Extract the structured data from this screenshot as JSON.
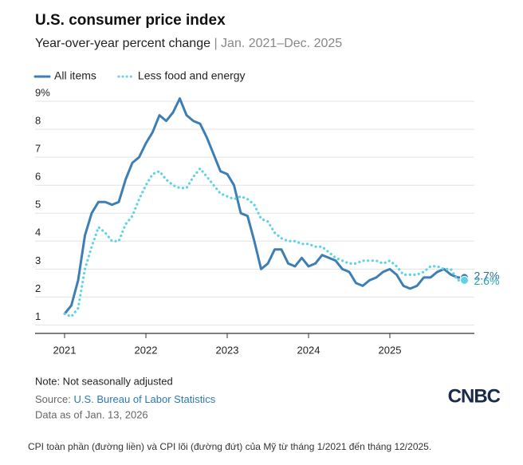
{
  "chart_data": {
    "type": "line",
    "title": "U.S. consumer price index",
    "subtitle": "Year-over-year percent change",
    "subtitle_range": "| Jan. 2021–Dec. 2025",
    "categories": [
      "2021",
      null,
      null,
      null,
      null,
      null,
      null,
      null,
      null,
      null,
      null,
      null,
      "2022",
      null,
      null,
      null,
      null,
      null,
      null,
      null,
      null,
      null,
      null,
      null,
      "2023",
      null,
      null,
      null,
      null,
      null,
      null,
      null,
      null,
      null,
      null,
      null,
      "2024",
      null,
      null,
      null,
      null,
      null,
      null,
      null,
      null,
      null,
      null,
      null,
      "2025",
      null,
      null,
      null,
      null,
      null,
      null,
      null,
      null,
      null,
      null,
      null
    ],
    "series": [
      {
        "name": "All items",
        "color": "#3d7fb5",
        "style": "solid",
        "end_label": "2.7%",
        "values": [
          1.4,
          1.7,
          2.6,
          4.2,
          5.0,
          5.4,
          5.4,
          5.3,
          5.4,
          6.2,
          6.8,
          7.0,
          7.5,
          7.9,
          8.5,
          8.3,
          8.6,
          9.1,
          8.5,
          8.3,
          8.2,
          7.7,
          7.1,
          6.5,
          6.4,
          6.0,
          5.0,
          4.9,
          4.0,
          3.0,
          3.2,
          3.7,
          3.7,
          3.2,
          3.1,
          3.4,
          3.1,
          3.2,
          3.5,
          3.4,
          3.3,
          3.0,
          2.9,
          2.5,
          2.4,
          2.6,
          2.7,
          2.9,
          3.0,
          2.8,
          2.4,
          2.3,
          2.4,
          2.7,
          2.7,
          2.9,
          3.0,
          2.8,
          2.7,
          2.7
        ]
      },
      {
        "name": "Less food and energy",
        "color": "#5fd3e6",
        "style": "dotted",
        "end_label": "2.6%",
        "values": [
          1.4,
          1.3,
          1.6,
          3.0,
          3.8,
          4.5,
          4.3,
          4.0,
          4.0,
          4.6,
          4.9,
          5.5,
          6.0,
          6.4,
          6.5,
          6.2,
          6.0,
          5.9,
          5.9,
          6.3,
          6.6,
          6.3,
          6.0,
          5.7,
          5.6,
          5.5,
          5.6,
          5.5,
          5.3,
          4.8,
          4.7,
          4.3,
          4.1,
          4.0,
          4.0,
          3.9,
          3.9,
          3.8,
          3.8,
          3.6,
          3.4,
          3.3,
          3.2,
          3.2,
          3.3,
          3.3,
          3.3,
          3.2,
          3.3,
          3.1,
          2.8,
          2.8,
          2.8,
          2.9,
          3.1,
          3.1,
          3.0,
          3.0,
          2.6,
          2.6
        ]
      }
    ],
    "ylim": [
      0.7,
      9.2
    ],
    "yticks": [
      1,
      2,
      3,
      4,
      5,
      6,
      7,
      8,
      {
        "value": 9,
        "label": "9%"
      }
    ],
    "grid": true,
    "legend": "top-left",
    "note": "Note: Not seasonally adjusted",
    "source_prefix": "Source:",
    "source": "U.S. Bureau of Labor Statistics",
    "data_as_of": "Data as of Jan. 13, 2026",
    "logo": "CNBC",
    "caption": "CPI toàn phần (đường liền) và CPI lõi (đường đứt) của Mỹ từ tháng 1/2021 đến tháng 12/2025."
  }
}
